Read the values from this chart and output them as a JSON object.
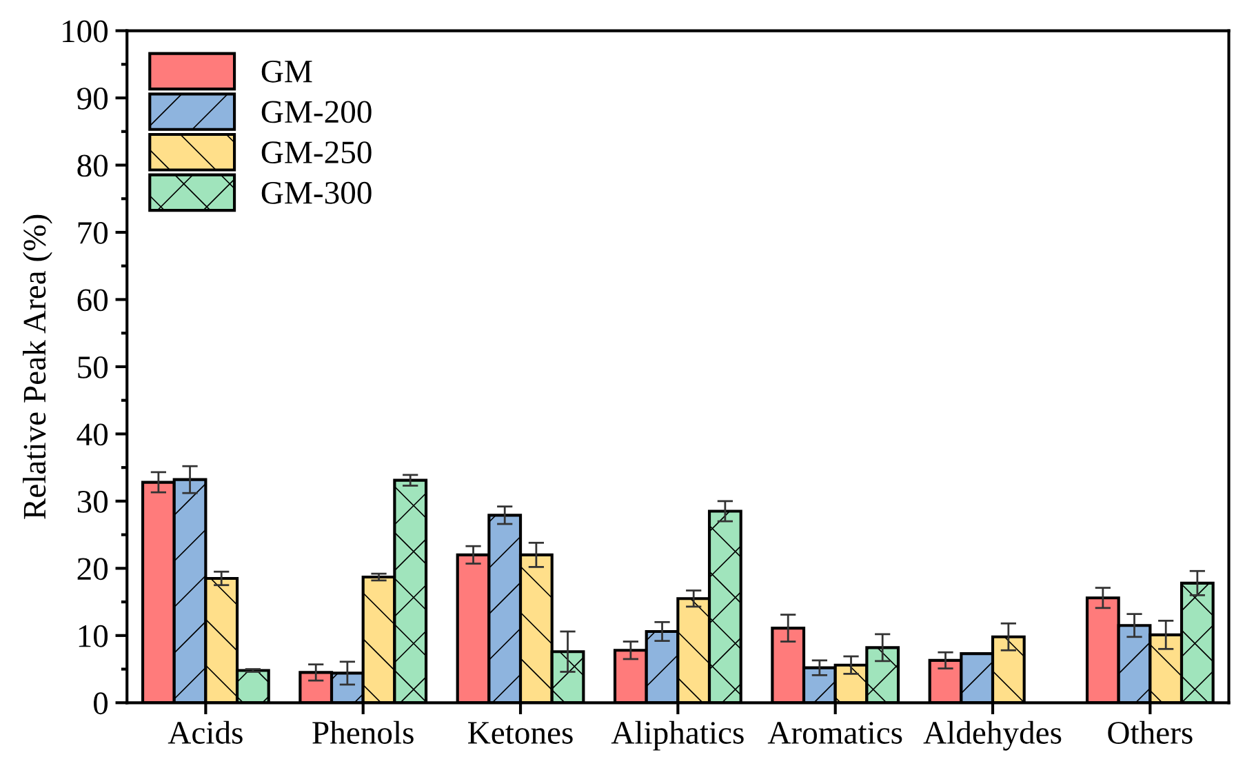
{
  "chart_data": {
    "type": "bar",
    "ylabel": "Relative Peak Area (%)",
    "categories": [
      "Acids",
      "Phenols",
      "Ketones",
      "Aliphatics",
      "Aromatics",
      "Aldehydes",
      "Others"
    ],
    "series": [
      {
        "name": "GM",
        "color": "#ff7b7b",
        "values": [
          32.8,
          4.5,
          22.0,
          7.8,
          11.1,
          6.3,
          15.6
        ],
        "errors": [
          1.5,
          1.2,
          1.3,
          1.3,
          2.0,
          1.2,
          1.5
        ]
      },
      {
        "name": "GM-200",
        "color": "#8eb4de",
        "values": [
          33.2,
          4.4,
          27.9,
          10.6,
          5.2,
          7.3,
          11.5
        ],
        "errors": [
          2.0,
          1.7,
          1.3,
          1.4,
          1.1,
          null,
          1.7
        ]
      },
      {
        "name": "GM-250",
        "color": "#ffdf8a",
        "values": [
          18.5,
          18.7,
          22.0,
          15.5,
          5.6,
          9.8,
          10.1
        ],
        "errors": [
          1.0,
          0.5,
          1.8,
          1.2,
          1.3,
          2.0,
          2.1
        ]
      },
      {
        "name": "GM-300",
        "color": "#a0e4bc",
        "values": [
          4.8,
          33.1,
          7.6,
          28.5,
          8.2,
          null,
          17.8
        ],
        "errors": [
          0.2,
          0.8,
          3.0,
          1.5,
          2.0,
          null,
          1.8
        ]
      }
    ],
    "ylim": [
      0,
      100
    ],
    "yticks": [
      0,
      10,
      20,
      30,
      40,
      50,
      60,
      70,
      80,
      90,
      100
    ],
    "grid": false,
    "legend": "top left"
  }
}
